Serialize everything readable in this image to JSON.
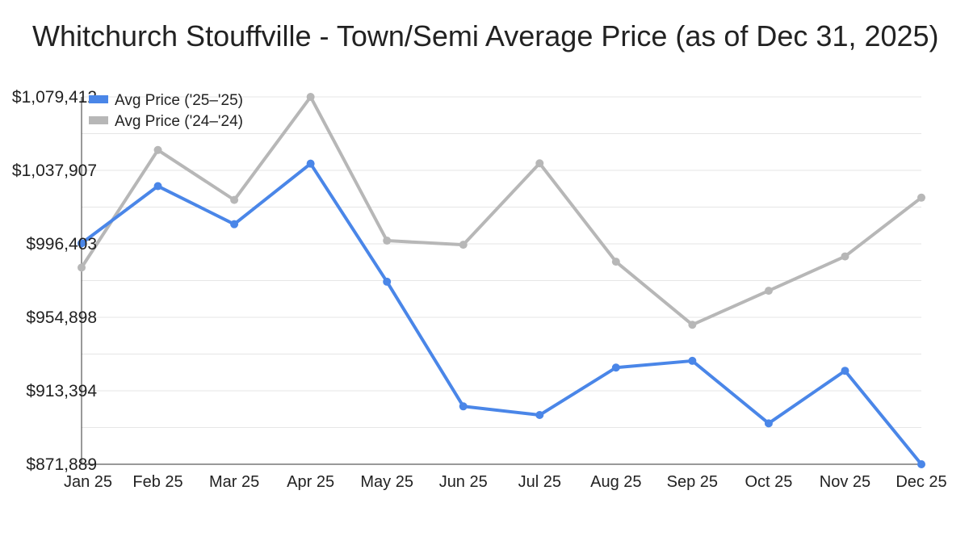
{
  "chart_data": {
    "type": "line",
    "title": "Whitchurch Stouffville - Town/Semi Average Price (as of Dec 31, 2025)",
    "xlabel": "",
    "ylabel": "",
    "categories": [
      "Jan 25",
      "Feb 25",
      "Mar 25",
      "Apr 25",
      "May 25",
      "Jun 25",
      "Jul 25",
      "Aug 25",
      "Sep 25",
      "Oct 25",
      "Nov 25",
      "Dec 25"
    ],
    "y_ticks": [
      "$1,079,412",
      "$1,037,907",
      "$996,403",
      "$954,898",
      "$913,394",
      "$871,889"
    ],
    "ylim": [
      871889,
      1079412
    ],
    "grid": true,
    "legend_position": "top-left",
    "series": [
      {
        "name": "Avg Price ('25–'25)",
        "color": "#4a86e8",
        "values": [
          996700,
          1029000,
          1007500,
          1041700,
          975000,
          904600,
          899700,
          926500,
          930300,
          895000,
          924700,
          871889
        ]
      },
      {
        "name": "Avg Price ('24–'24)",
        "color": "#b7b7b7",
        "values": [
          983000,
          1049400,
          1021200,
          1079412,
          998200,
          995900,
          1041900,
          986300,
          950700,
          969900,
          989300,
          1022500
        ]
      }
    ]
  }
}
